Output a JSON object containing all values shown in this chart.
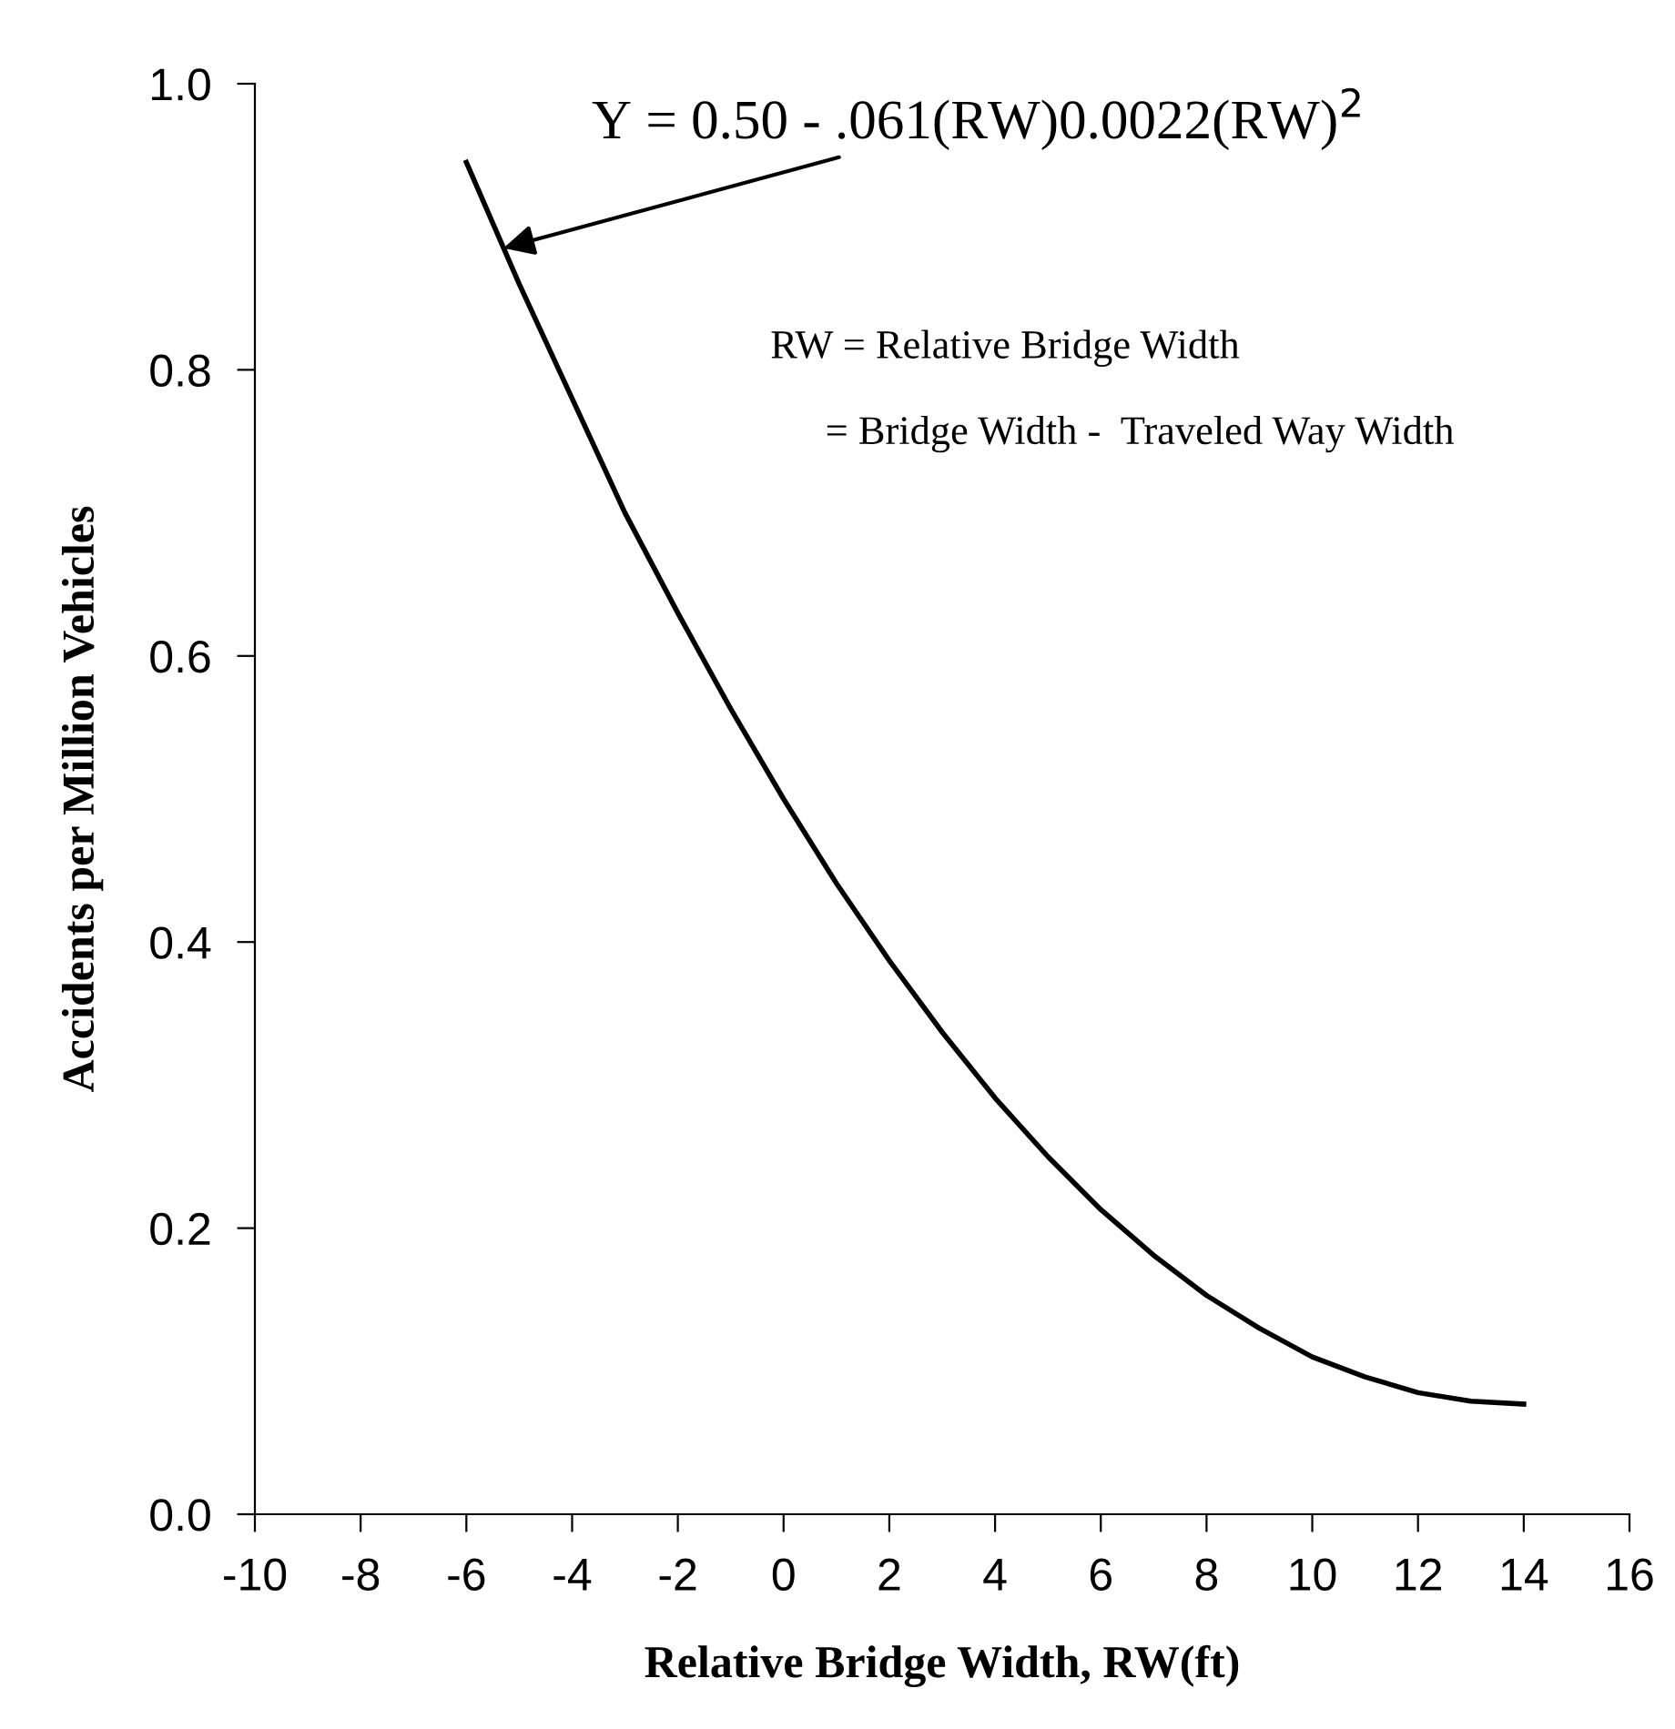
{
  "chart_data": {
    "type": "line",
    "xlabel": "Relative Bridge Width, RW(ft)",
    "ylabel": "Accidents per Million Vehicles",
    "x": [
      -6,
      -5,
      -4,
      -3,
      -2,
      -1,
      0,
      1,
      2,
      3,
      4,
      5,
      6,
      7,
      8,
      9,
      10,
      11,
      12,
      13,
      14
    ],
    "series": [
      {
        "color": "#000000",
        "values": [
          0.945,
          0.86,
          0.78,
          0.7,
          0.63,
          0.563,
          0.5,
          0.441,
          0.387,
          0.337,
          0.291,
          0.25,
          0.213,
          0.181,
          0.153,
          0.13,
          0.11,
          0.096,
          0.085,
          0.079,
          0.077
        ]
      }
    ],
    "xlim": [
      -10,
      16
    ],
    "xticks": [
      -10,
      -8,
      -6,
      -4,
      -2,
      0,
      2,
      4,
      6,
      8,
      10,
      12,
      14,
      16
    ],
    "ylim": [
      0,
      1
    ],
    "yticks": [
      {
        "value": 0,
        "label": "0.0"
      },
      {
        "value": 0.2,
        "label": "0.2"
      },
      {
        "value": 0.4,
        "label": "0.4"
      },
      {
        "value": 0.6,
        "label": "0.6"
      },
      {
        "value": 0.8,
        "label": "0.8"
      },
      {
        "value": 1,
        "label": "1.0"
      }
    ],
    "annotations": [
      {
        "text": "Y = 0.50 - .061(RW)0.0022(RW)$^{2}$",
        "x": -5.3,
        "y": 0.885
      },
      "RW = Relative Bridge Width",
      "= Bridge Width -  Traveled Way Width"
    ],
    "grid": false,
    "legend": false,
    "marker": "none",
    "line_style": "solid"
  }
}
